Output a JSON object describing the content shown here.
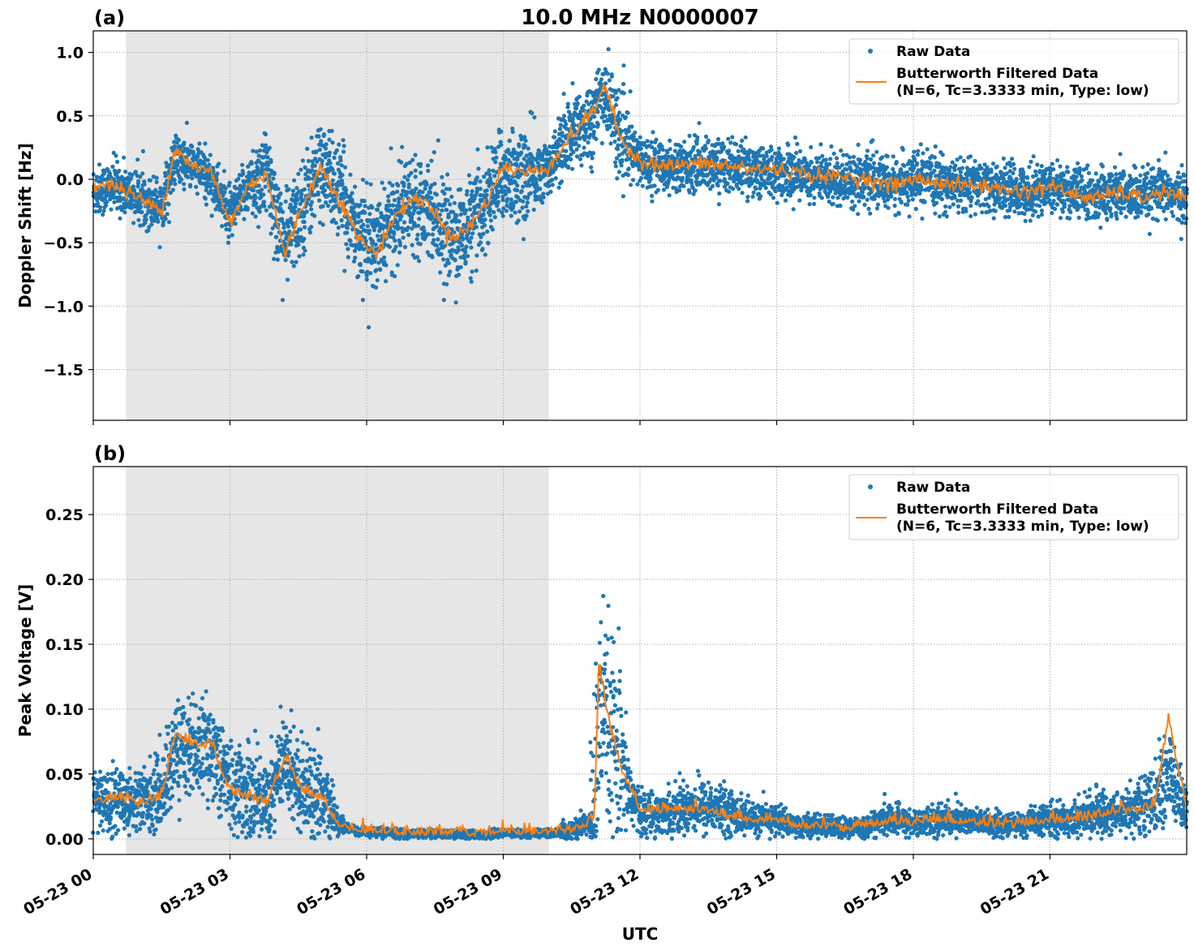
{
  "title": "10.0 MHz N0000007",
  "colors": {
    "raw": "#1f77b4",
    "filtered": "#ff7f0e",
    "shade": "#e6e6e6",
    "grid": "#b0b0b0"
  },
  "legend": {
    "raw": "Raw Data",
    "filtered_line1": "Butterworth Filtered Data",
    "filtered_line2": "(N=6, Tc=3.3333 min, Type: low)"
  },
  "chart_data": [
    {
      "type": "scatter",
      "panel": "(a)",
      "title": "10.0 MHz N0000007",
      "xlabel": "",
      "ylabel": "Doppler Shift [Hz]",
      "xlim_hours": [
        0,
        24
      ],
      "ylim": [
        -1.9,
        1.17
      ],
      "yticks": [
        1.0,
        0.5,
        0.0,
        -0.5,
        -1.0,
        -1.5
      ],
      "ytick_labels": [
        "1.0",
        "0.5",
        "0.0",
        "−0.5",
        "−1.0",
        "−1.5"
      ],
      "shaded_region_hours": [
        0.72,
        10.0
      ],
      "grid": true,
      "legend_position": "top-right",
      "series": [
        {
          "name": "Raw Data",
          "x": [
            0,
            0.5,
            1,
            1.5,
            1.8,
            2.2,
            2.6,
            3.0,
            3.4,
            3.8,
            4.2,
            4.6,
            5.0,
            5.4,
            5.8,
            6.2,
            6.6,
            7.0,
            7.4,
            7.8,
            8.2,
            8.6,
            9.0,
            9.5,
            10.0,
            10.5,
            11.0,
            11.2,
            11.6,
            12.0,
            12.5,
            13.0,
            13.5,
            14.0,
            14.5,
            15.0,
            15.5,
            16.0,
            16.5,
            17.0,
            17.5,
            18.0,
            18.5,
            19.0,
            19.5,
            20.0,
            20.5,
            21.0,
            21.5,
            22.0,
            22.5,
            23.0,
            23.5,
            24.0
          ],
          "y": [
            -0.1,
            -0.05,
            -0.15,
            -0.2,
            0.15,
            0.1,
            0.0,
            -0.3,
            -0.05,
            0.05,
            -0.5,
            -0.2,
            0.1,
            -0.1,
            -0.4,
            -0.55,
            -0.3,
            -0.15,
            -0.2,
            -0.45,
            -0.4,
            -0.2,
            0.05,
            0.0,
            0.1,
            0.35,
            0.5,
            0.7,
            0.3,
            0.15,
            0.1,
            0.1,
            0.12,
            0.1,
            0.08,
            0.05,
            0.05,
            0.0,
            0.0,
            0.0,
            -0.05,
            0.0,
            -0.02,
            -0.05,
            -0.05,
            -0.08,
            -0.1,
            -0.05,
            -0.1,
            -0.15,
            -0.1,
            -0.15,
            -0.1,
            -0.15
          ]
        },
        {
          "name": "Butterworth Filtered Data (N=6, Tc=3.3333 min, Type: low)",
          "x": [
            0,
            0.5,
            1,
            1.5,
            1.8,
            2.2,
            2.6,
            3.0,
            3.4,
            3.8,
            4.2,
            4.6,
            5.0,
            5.4,
            5.8,
            6.2,
            6.6,
            7.0,
            7.4,
            7.8,
            8.2,
            8.6,
            9.0,
            9.5,
            10.0,
            10.5,
            11.0,
            11.2,
            11.6,
            12.0,
            12.5,
            13.0,
            13.5,
            14.0,
            14.5,
            15.0,
            15.5,
            16.0,
            16.5,
            17.0,
            17.5,
            18.0,
            18.5,
            19.0,
            19.5,
            20.0,
            20.5,
            21.0,
            21.5,
            22.0,
            22.5,
            23.0,
            23.5,
            24.0
          ],
          "y": [
            -0.05,
            -0.05,
            -0.15,
            -0.25,
            0.25,
            0.1,
            0.05,
            -0.35,
            -0.05,
            0.05,
            -0.6,
            -0.2,
            0.1,
            -0.15,
            -0.45,
            -0.6,
            -0.3,
            -0.15,
            -0.2,
            -0.45,
            -0.4,
            -0.2,
            0.1,
            0.05,
            0.1,
            0.35,
            0.55,
            0.75,
            0.3,
            0.15,
            0.1,
            0.12,
            0.12,
            0.1,
            0.08,
            0.08,
            0.05,
            0.02,
            0.02,
            0.0,
            -0.05,
            0.0,
            -0.02,
            -0.05,
            -0.05,
            -0.08,
            -0.1,
            -0.05,
            -0.12,
            -0.15,
            -0.1,
            -0.15,
            -0.1,
            -0.15
          ]
        }
      ]
    },
    {
      "type": "scatter",
      "panel": "(b)",
      "xlabel": "UTC",
      "ylabel": "Peak Voltage [V]",
      "xlim_hours": [
        0,
        24
      ],
      "ylim": [
        -0.012,
        0.287
      ],
      "yticks": [
        0.0,
        0.05,
        0.1,
        0.15,
        0.2,
        0.25
      ],
      "ytick_labels": [
        "0.00",
        "0.05",
        "0.10",
        "0.15",
        "0.20",
        "0.25"
      ],
      "xticks_hours": [
        0,
        3,
        6,
        9,
        12,
        15,
        18,
        21
      ],
      "xtick_labels": [
        "05-23 00",
        "05-23 03",
        "05-23 06",
        "05-23 09",
        "05-23 12",
        "05-23 15",
        "05-23 18",
        "05-23 21"
      ],
      "shaded_region_hours": [
        0.72,
        10.0
      ],
      "grid": true,
      "legend_position": "top-right",
      "series": [
        {
          "name": "Raw Data",
          "x": [
            0,
            0.5,
            1,
            1.5,
            1.8,
            2.2,
            2.6,
            3.0,
            3.4,
            3.8,
            4.2,
            4.6,
            5.0,
            5.4,
            5.8,
            6.2,
            6.6,
            7.0,
            7.4,
            7.8,
            8.2,
            8.6,
            9.0,
            9.5,
            10.0,
            10.5,
            11.0,
            11.1,
            11.3,
            11.6,
            12.0,
            12.5,
            13.0,
            13.5,
            14.0,
            14.5,
            15.0,
            15.5,
            16.0,
            16.5,
            17.0,
            17.5,
            18.0,
            18.5,
            19.0,
            19.5,
            20.0,
            20.5,
            21.0,
            21.5,
            22.0,
            22.5,
            23.0,
            23.3,
            23.6,
            24.0
          ],
          "y": [
            0.03,
            0.03,
            0.03,
            0.035,
            0.07,
            0.07,
            0.07,
            0.04,
            0.035,
            0.03,
            0.06,
            0.04,
            0.035,
            0.01,
            0.006,
            0.005,
            0.004,
            0.004,
            0.004,
            0.004,
            0.003,
            0.003,
            0.005,
            0.004,
            0.004,
            0.006,
            0.015,
            0.1,
            0.08,
            0.05,
            0.02,
            0.02,
            0.025,
            0.025,
            0.02,
            0.015,
            0.015,
            0.01,
            0.01,
            0.008,
            0.01,
            0.015,
            0.012,
            0.015,
            0.015,
            0.012,
            0.01,
            0.012,
            0.015,
            0.015,
            0.02,
            0.02,
            0.025,
            0.03,
            0.05,
            0.02
          ]
        },
        {
          "name": "Butterworth Filtered Data (N=6, Tc=3.3333 min, Type: low)",
          "x": [
            0,
            0.5,
            1,
            1.5,
            1.8,
            2.2,
            2.6,
            3.0,
            3.4,
            3.8,
            4.2,
            4.6,
            5.0,
            5.4,
            5.8,
            6.2,
            6.6,
            7.0,
            7.4,
            7.8,
            8.2,
            8.6,
            9.0,
            9.5,
            10.0,
            10.5,
            11.0,
            11.1,
            11.3,
            11.6,
            12.0,
            12.5,
            13.0,
            13.5,
            14.0,
            14.5,
            15.0,
            15.5,
            16.0,
            16.5,
            17.0,
            17.5,
            18.0,
            18.5,
            19.0,
            19.5,
            20.0,
            20.5,
            21.0,
            21.5,
            22.0,
            22.5,
            23.0,
            23.3,
            23.6,
            24.0
          ],
          "y": [
            0.025,
            0.03,
            0.025,
            0.03,
            0.08,
            0.07,
            0.07,
            0.035,
            0.03,
            0.025,
            0.06,
            0.035,
            0.03,
            0.008,
            0.005,
            0.004,
            0.003,
            0.003,
            0.003,
            0.003,
            0.002,
            0.002,
            0.005,
            0.003,
            0.003,
            0.005,
            0.012,
            0.135,
            0.09,
            0.05,
            0.02,
            0.02,
            0.02,
            0.02,
            0.015,
            0.012,
            0.012,
            0.008,
            0.008,
            0.006,
            0.008,
            0.012,
            0.01,
            0.012,
            0.012,
            0.01,
            0.008,
            0.01,
            0.012,
            0.012,
            0.015,
            0.02,
            0.02,
            0.025,
            0.09,
            0.02
          ]
        }
      ]
    }
  ]
}
